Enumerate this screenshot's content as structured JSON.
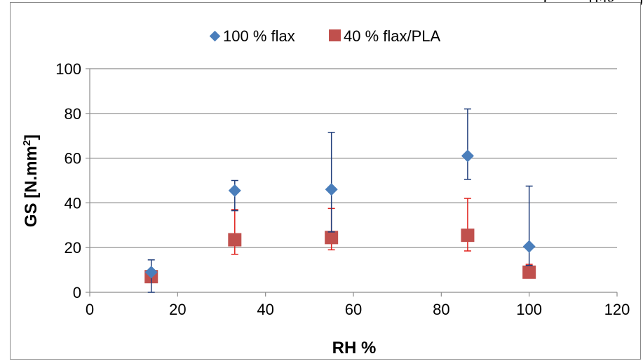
{
  "header_fragment": "…, …., …), … …(Fig. …)",
  "chart_data": {
    "type": "scatter",
    "title": "",
    "xlabel": "RH %",
    "ylabel_main": "GS [N.mm",
    "ylabel_sup": "2",
    "ylabel_close": "]",
    "xlim": [
      0,
      120
    ],
    "ylim": [
      0,
      100
    ],
    "x_ticks": [
      "0",
      "20",
      "40",
      "60",
      "80",
      "100",
      "120"
    ],
    "y_ticks": [
      "0",
      "20",
      "40",
      "60",
      "80",
      "100"
    ],
    "grid": "horizontal",
    "legend_position": "top",
    "series": [
      {
        "name": "100 % flax",
        "marker": "diamond",
        "color": "#4a7ebb",
        "error_color": "#1f3d7a",
        "points": [
          {
            "x": 14,
            "y": 9,
            "err_low": 0,
            "err_high": 14.5
          },
          {
            "x": 33,
            "y": 45.5,
            "err_low": 36.5,
            "err_high": 50
          },
          {
            "x": 55,
            "y": 46,
            "err_low": 27,
            "err_high": 71.5
          },
          {
            "x": 86,
            "y": 61,
            "err_low": 50.5,
            "err_high": 82
          },
          {
            "x": 100,
            "y": 20.5,
            "err_low": 12,
            "err_high": 47.5
          }
        ]
      },
      {
        "name": "40 % flax/PLA",
        "marker": "square",
        "color": "#c0504d",
        "error_color": "#e0201b",
        "points": [
          {
            "x": 14,
            "y": 7,
            "err_low": 7,
            "err_high": 7
          },
          {
            "x": 33,
            "y": 23.5,
            "err_low": 17,
            "err_high": 37
          },
          {
            "x": 55,
            "y": 24.5,
            "err_low": 19,
            "err_high": 37.5
          },
          {
            "x": 86,
            "y": 25.5,
            "err_low": 18.5,
            "err_high": 42
          },
          {
            "x": 100,
            "y": 9,
            "err_low": 8.5,
            "err_high": 12.5
          }
        ]
      }
    ]
  }
}
